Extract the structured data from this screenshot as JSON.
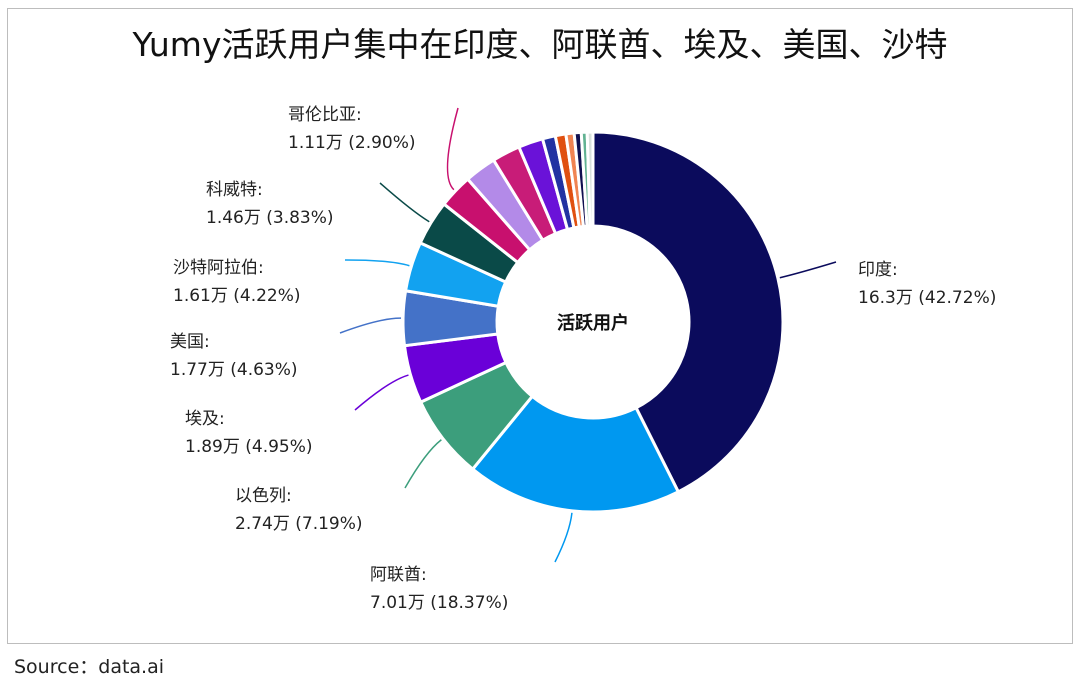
{
  "chart_data": {
    "type": "pie",
    "title": "Yumy活跃用户集中在印度、阿联酋、埃及、美国、沙特",
    "center_label": "活跃用户",
    "source": "Source：data.ai",
    "unit": "万",
    "slices": [
      {
        "name": "印度",
        "value": 16.3,
        "value_label": "16.3万",
        "pct": 42.72,
        "pct_label": "(42.72%)",
        "color": "#0b0b5c"
      },
      {
        "name": "阿联酋",
        "value": 7.01,
        "value_label": "7.01万",
        "pct": 18.37,
        "pct_label": "(18.37%)",
        "color": "#0098f0"
      },
      {
        "name": "以色列",
        "value": 2.74,
        "value_label": "2.74万",
        "pct": 7.19,
        "pct_label": "(7.19%)",
        "color": "#3c9e7c"
      },
      {
        "name": "埃及",
        "value": 1.89,
        "value_label": "1.89万",
        "pct": 4.95,
        "pct_label": "(4.95%)",
        "color": "#6a00d8"
      },
      {
        "name": "美国",
        "value": 1.77,
        "value_label": "1.77万",
        "pct": 4.63,
        "pct_label": "(4.63%)",
        "color": "#4472c8"
      },
      {
        "name": "沙特阿拉伯",
        "value": 1.61,
        "value_label": "1.61万",
        "pct": 4.22,
        "pct_label": "(4.22%)",
        "color": "#12a2f0"
      },
      {
        "name": "科威特",
        "value": 1.46,
        "value_label": "1.46万",
        "pct": 3.83,
        "pct_label": "(3.83%)",
        "color": "#0a4a48"
      },
      {
        "name": "哥伦比亚",
        "value": 1.11,
        "value_label": "1.11万",
        "pct": 2.9,
        "pct_label": "(2.90%)",
        "color": "#c8106e"
      },
      {
        "name": "",
        "pct": 2.7,
        "color": "#b38ae8"
      },
      {
        "name": "",
        "pct": 2.4,
        "color": "#c81c78"
      },
      {
        "name": "",
        "pct": 2.1,
        "color": "#6a12d8"
      },
      {
        "name": "",
        "pct": 1.1,
        "color": "#2232a2"
      },
      {
        "name": "",
        "pct": 0.9,
        "color": "#e05010"
      },
      {
        "name": "",
        "pct": 0.7,
        "color": "#f08452"
      },
      {
        "name": "",
        "pct": 0.6,
        "color": "#101050"
      },
      {
        "name": "",
        "pct": 0.5,
        "color": "#62b292"
      },
      {
        "name": "",
        "pct": 0.49,
        "color": "#d8e0dc"
      }
    ]
  }
}
